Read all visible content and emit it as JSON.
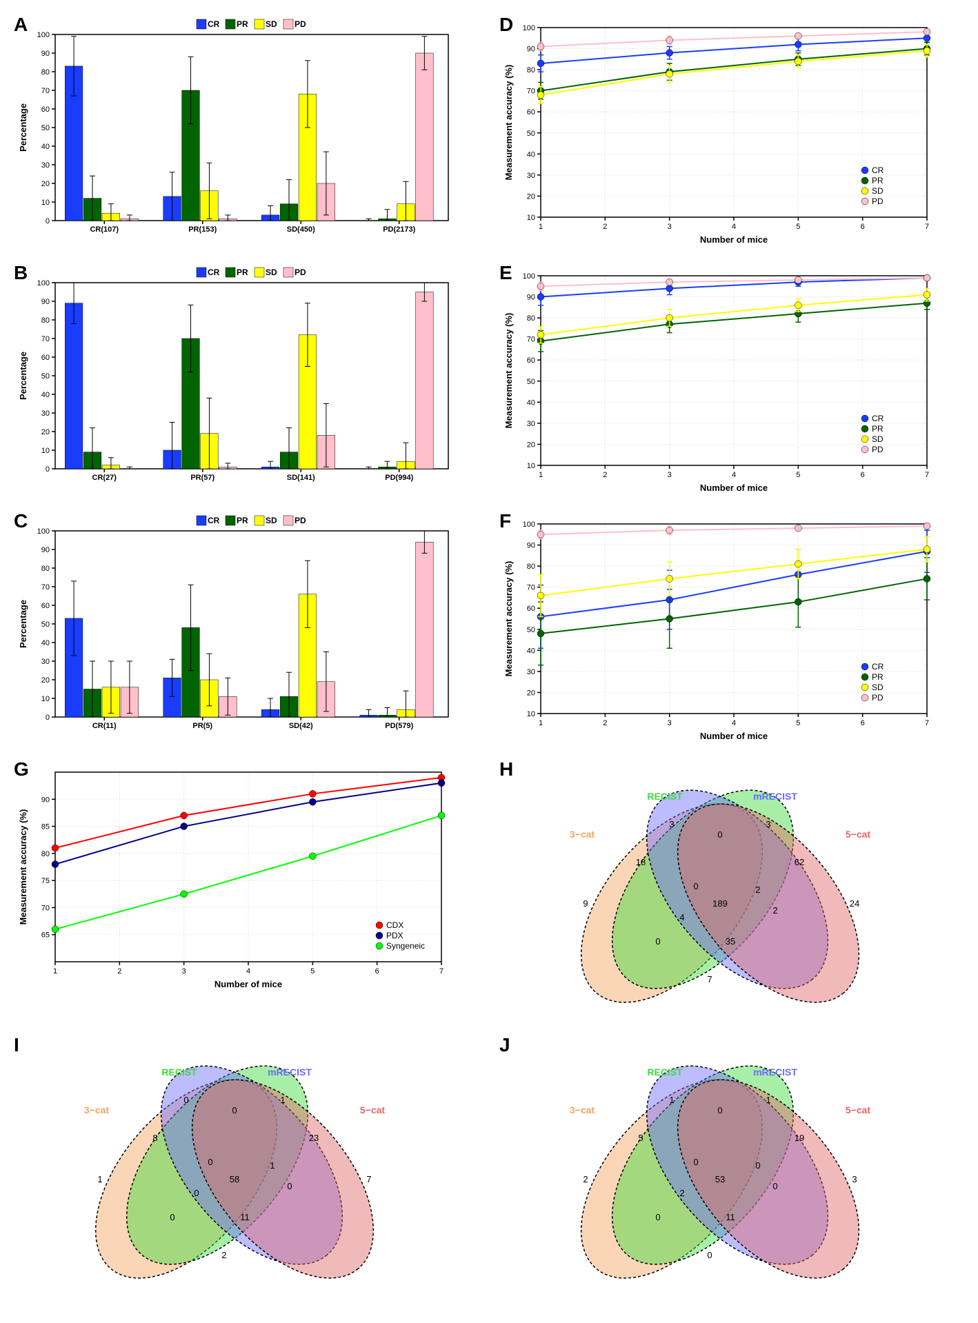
{
  "colors": {
    "CR": "#1a3cff",
    "PR": "#006400",
    "SD": "#ffff00",
    "PD": "#ffc0cb",
    "CDX": "#ff0000",
    "PDX": "#00008b",
    "Syngeneic": "#00ff00",
    "venn_3cat": "#f4a460",
    "venn_recist": "#3cdc3c",
    "venn_mrecist": "#6a6aff",
    "venn_5cat": "#e06666"
  },
  "barCharts": {
    "A": {
      "label": "A",
      "ylabel": "Percentage",
      "ylim": [
        0,
        100
      ],
      "ytick_step": 10,
      "legend": [
        "CR",
        "PR",
        "SD",
        "PD"
      ],
      "groups": [
        {
          "name": "CR(107)",
          "bars": [
            {
              "v": 83,
              "e": 16
            },
            {
              "v": 12,
              "e": 12
            },
            {
              "v": 4,
              "e": 5
            },
            {
              "v": 1,
              "e": 2
            }
          ]
        },
        {
          "name": "PR(153)",
          "bars": [
            {
              "v": 13,
              "e": 13
            },
            {
              "v": 70,
              "e": 18
            },
            {
              "v": 16,
              "e": 15
            },
            {
              "v": 1,
              "e": 2
            }
          ]
        },
        {
          "name": "SD(450)",
          "bars": [
            {
              "v": 3,
              "e": 5
            },
            {
              "v": 9,
              "e": 13
            },
            {
              "v": 68,
              "e": 18
            },
            {
              "v": 20,
              "e": 17
            }
          ]
        },
        {
          "name": "PD(2173)",
          "bars": [
            {
              "v": 0,
              "e": 1
            },
            {
              "v": 1,
              "e": 5
            },
            {
              "v": 9,
              "e": 12
            },
            {
              "v": 90,
              "e": 9
            }
          ]
        }
      ]
    },
    "B": {
      "label": "B",
      "ylabel": "Percentage",
      "ylim": [
        0,
        100
      ],
      "ytick_step": 10,
      "legend": [
        "CR",
        "PR",
        "SD",
        "PD"
      ],
      "groups": [
        {
          "name": "CR(27)",
          "bars": [
            {
              "v": 89,
              "e": 11
            },
            {
              "v": 9,
              "e": 13
            },
            {
              "v": 2,
              "e": 4
            },
            {
              "v": 0,
              "e": 1
            }
          ]
        },
        {
          "name": "PR(57)",
          "bars": [
            {
              "v": 10,
              "e": 15
            },
            {
              "v": 70,
              "e": 18
            },
            {
              "v": 19,
              "e": 19
            },
            {
              "v": 1,
              "e": 2
            }
          ]
        },
        {
          "name": "SD(141)",
          "bars": [
            {
              "v": 1,
              "e": 3
            },
            {
              "v": 9,
              "e": 13
            },
            {
              "v": 72,
              "e": 17
            },
            {
              "v": 18,
              "e": 17
            }
          ]
        },
        {
          "name": "PD(994)",
          "bars": [
            {
              "v": 0,
              "e": 1
            },
            {
              "v": 1,
              "e": 3
            },
            {
              "v": 4,
              "e": 10
            },
            {
              "v": 95,
              "e": 5
            }
          ]
        }
      ]
    },
    "C": {
      "label": "C",
      "ylabel": "Percentage",
      "ylim": [
        0,
        100
      ],
      "ytick_step": 10,
      "legend": [
        "CR",
        "PR",
        "SD",
        "PD"
      ],
      "groups": [
        {
          "name": "CR(11)",
          "bars": [
            {
              "v": 53,
              "e": 20
            },
            {
              "v": 15,
              "e": 15
            },
            {
              "v": 16,
              "e": 14
            },
            {
              "v": 16,
              "e": 14
            }
          ]
        },
        {
          "name": "PR(5)",
          "bars": [
            {
              "v": 21,
              "e": 10
            },
            {
              "v": 48,
              "e": 23
            },
            {
              "v": 20,
              "e": 14
            },
            {
              "v": 11,
              "e": 10
            }
          ]
        },
        {
          "name": "SD(42)",
          "bars": [
            {
              "v": 4,
              "e": 6
            },
            {
              "v": 11,
              "e": 13
            },
            {
              "v": 66,
              "e": 18
            },
            {
              "v": 19,
              "e": 16
            }
          ]
        },
        {
          "name": "PD(579)",
          "bars": [
            {
              "v": 1,
              "e": 3
            },
            {
              "v": 1,
              "e": 4
            },
            {
              "v": 4,
              "e": 10
            },
            {
              "v": 94,
              "e": 6
            }
          ]
        }
      ]
    }
  },
  "lineCharts": {
    "D": {
      "label": "D",
      "xlabel": "Number of mice",
      "ylabel": "Measurement accuracy (%)",
      "xlim": [
        1,
        7
      ],
      "xtick_step": 1,
      "ylim": [
        10,
        100
      ],
      "ytick_step": 10,
      "legend": [
        "CR",
        "PR",
        "SD",
        "PD"
      ],
      "legend_pos": "br",
      "series": [
        {
          "key": "CR",
          "pts": [
            {
              "x": 1,
              "y": 83,
              "e": 4
            },
            {
              "x": 3,
              "y": 88,
              "e": 3
            },
            {
              "x": 5,
              "y": 92,
              "e": 3
            },
            {
              "x": 7,
              "y": 95,
              "e": 2
            }
          ]
        },
        {
          "key": "PR",
          "pts": [
            {
              "x": 1,
              "y": 70,
              "e": 4
            },
            {
              "x": 3,
              "y": 79,
              "e": 4
            },
            {
              "x": 5,
              "y": 85,
              "e": 3
            },
            {
              "x": 7,
              "y": 90,
              "e": 3
            }
          ]
        },
        {
          "key": "SD",
          "pts": [
            {
              "x": 1,
              "y": 68,
              "e": 4
            },
            {
              "x": 3,
              "y": 78,
              "e": 4
            },
            {
              "x": 5,
              "y": 84,
              "e": 3
            },
            {
              "x": 7,
              "y": 89,
              "e": 3
            }
          ]
        },
        {
          "key": "PD",
          "pts": [
            {
              "x": 1,
              "y": 91,
              "e": 2
            },
            {
              "x": 3,
              "y": 94,
              "e": 2
            },
            {
              "x": 5,
              "y": 96,
              "e": 1
            },
            {
              "x": 7,
              "y": 98,
              "e": 1
            }
          ]
        }
      ]
    },
    "E": {
      "label": "E",
      "xlabel": "Number of mice",
      "ylabel": "Measurement accuracy (%)",
      "xlim": [
        1,
        7
      ],
      "xtick_step": 1,
      "ylim": [
        10,
        100
      ],
      "ytick_step": 10,
      "legend": [
        "CR",
        "PR",
        "SD",
        "PD"
      ],
      "legend_pos": "br",
      "series": [
        {
          "key": "CR",
          "pts": [
            {
              "x": 1,
              "y": 90,
              "e": 4
            },
            {
              "x": 3,
              "y": 94,
              "e": 3
            },
            {
              "x": 5,
              "y": 97,
              "e": 2
            },
            {
              "x": 7,
              "y": 99,
              "e": 1
            }
          ]
        },
        {
          "key": "PR",
          "pts": [
            {
              "x": 1,
              "y": 69,
              "e": 5
            },
            {
              "x": 3,
              "y": 77,
              "e": 4
            },
            {
              "x": 5,
              "y": 82,
              "e": 4
            },
            {
              "x": 7,
              "y": 87,
              "e": 3
            }
          ]
        },
        {
          "key": "SD",
          "pts": [
            {
              "x": 1,
              "y": 72,
              "e": 4
            },
            {
              "x": 3,
              "y": 80,
              "e": 4
            },
            {
              "x": 5,
              "y": 86,
              "e": 3
            },
            {
              "x": 7,
              "y": 91,
              "e": 3
            }
          ]
        },
        {
          "key": "PD",
          "pts": [
            {
              "x": 1,
              "y": 95,
              "e": 2
            },
            {
              "x": 3,
              "y": 97,
              "e": 1
            },
            {
              "x": 5,
              "y": 98,
              "e": 1
            },
            {
              "x": 7,
              "y": 99,
              "e": 1
            }
          ]
        }
      ]
    },
    "F": {
      "label": "F",
      "xlabel": "Number of mice",
      "ylabel": "Measurement accuracy (%)",
      "xlim": [
        1,
        7
      ],
      "xtick_step": 1,
      "ylim": [
        10,
        100
      ],
      "ytick_step": 10,
      "legend": [
        "CR",
        "PR",
        "SD",
        "PD"
      ],
      "legend_pos": "br",
      "series": [
        {
          "key": "CR",
          "pts": [
            {
              "x": 1,
              "y": 56,
              "e": 15
            },
            {
              "x": 3,
              "y": 64,
              "e": 14
            },
            {
              "x": 5,
              "y": 76,
              "e": 12
            },
            {
              "x": 7,
              "y": 87,
              "e": 10
            }
          ]
        },
        {
          "key": "PR",
          "pts": [
            {
              "x": 1,
              "y": 48,
              "e": 15
            },
            {
              "x": 3,
              "y": 55,
              "e": 14
            },
            {
              "x": 5,
              "y": 63,
              "e": 12
            },
            {
              "x": 7,
              "y": 74,
              "e": 10
            }
          ]
        },
        {
          "key": "SD",
          "pts": [
            {
              "x": 1,
              "y": 66,
              "e": 10
            },
            {
              "x": 3,
              "y": 74,
              "e": 8
            },
            {
              "x": 5,
              "y": 81,
              "e": 7
            },
            {
              "x": 7,
              "y": 88,
              "e": 6
            }
          ]
        },
        {
          "key": "PD",
          "pts": [
            {
              "x": 1,
              "y": 95,
              "e": 2
            },
            {
              "x": 3,
              "y": 97,
              "e": 2
            },
            {
              "x": 5,
              "y": 98,
              "e": 1
            },
            {
              "x": 7,
              "y": 99,
              "e": 1
            }
          ]
        }
      ]
    },
    "G": {
      "label": "G",
      "xlabel": "Number of mice",
      "ylabel": "Measurement accuracy (%)",
      "xlim": [
        1,
        7
      ],
      "xtick_step": 1,
      "ylim": [
        60,
        95
      ],
      "ytick_step": 5,
      "yticks": [
        65,
        70,
        75,
        80,
        85,
        90
      ],
      "legend": [
        "CDX",
        "PDX",
        "Syngeneic"
      ],
      "legend_pos": "br",
      "series": [
        {
          "key": "CDX",
          "pts": [
            {
              "x": 1,
              "y": 81
            },
            {
              "x": 3,
              "y": 87
            },
            {
              "x": 5,
              "y": 91
            },
            {
              "x": 7,
              "y": 94
            }
          ]
        },
        {
          "key": "PDX",
          "pts": [
            {
              "x": 1,
              "y": 78
            },
            {
              "x": 3,
              "y": 85
            },
            {
              "x": 5,
              "y": 89.5
            },
            {
              "x": 7,
              "y": 93
            }
          ]
        },
        {
          "key": "Syngeneic",
          "pts": [
            {
              "x": 1,
              "y": 66
            },
            {
              "x": 3,
              "y": 72.5
            },
            {
              "x": 5,
              "y": 79.5
            },
            {
              "x": 7,
              "y": 87
            }
          ]
        }
      ]
    }
  },
  "venns": {
    "H": {
      "label": "H",
      "sets": [
        {
          "name": "3−cat",
          "color": "venn_3cat"
        },
        {
          "name": "RECIST",
          "color": "venn_recist"
        },
        {
          "name": "mRECIST",
          "color": "venn_mrecist"
        },
        {
          "name": "5−cat",
          "color": "venn_5cat"
        }
      ],
      "vals": {
        "a": 9,
        "b": 3,
        "c": 3,
        "d": 24,
        "ab": 18,
        "bc": 0,
        "cd": 62,
        "ac": 0,
        "bd": 2,
        "ad": 7,
        "abc": 0,
        "bcd": 2,
        "abd": 35,
        "acd": 4,
        "abcd": 189
      }
    },
    "I": {
      "label": "I",
      "sets": [
        {
          "name": "3−cat",
          "color": "venn_3cat"
        },
        {
          "name": "RECIST",
          "color": "venn_recist"
        },
        {
          "name": "mRECIST",
          "color": "venn_mrecist"
        },
        {
          "name": "5−cat",
          "color": "venn_5cat"
        }
      ],
      "vals": {
        "a": 1,
        "b": 0,
        "c": 1,
        "d": 7,
        "ab": 8,
        "bc": 0,
        "cd": 23,
        "ac": 0,
        "bd": 1,
        "ad": 2,
        "abc": 0,
        "bcd": 0,
        "abd": 11,
        "acd": 0,
        "abcd": 58
      }
    },
    "J": {
      "label": "J",
      "sets": [
        {
          "name": "3−cat",
          "color": "venn_3cat"
        },
        {
          "name": "RECIST",
          "color": "venn_recist"
        },
        {
          "name": "mRECIST",
          "color": "venn_mrecist"
        },
        {
          "name": "5−cat",
          "color": "venn_5cat"
        }
      ],
      "vals": {
        "a": 2,
        "b": 1,
        "c": 1,
        "d": 3,
        "ab": 5,
        "bc": 0,
        "cd": 19,
        "ac": 0,
        "bd": 0,
        "ad": 0,
        "abc": 0,
        "bcd": 0,
        "abd": 11,
        "acd": 2,
        "abcd": 53
      }
    }
  }
}
